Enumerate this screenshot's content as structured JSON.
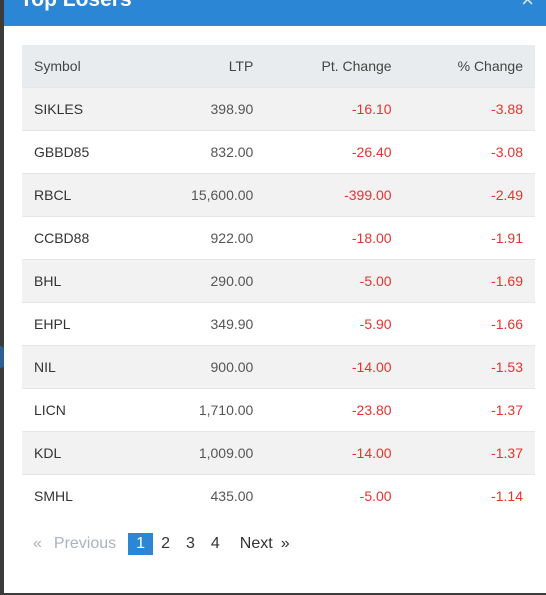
{
  "modal": {
    "title": "Top Losers",
    "close_glyph": "×"
  },
  "table": {
    "headers": [
      "Symbol",
      "LTP",
      "Pt. Change",
      "% Change"
    ],
    "rows": [
      {
        "symbol": "SIKLES",
        "ltp": "398.90",
        "pt_change": "-16.10",
        "pct_change": "-3.88"
      },
      {
        "symbol": "GBBD85",
        "ltp": "832.00",
        "pt_change": "-26.40",
        "pct_change": "-3.08"
      },
      {
        "symbol": "RBCL",
        "ltp": "15,600.00",
        "pt_change": "-399.00",
        "pct_change": "-2.49"
      },
      {
        "symbol": "CCBD88",
        "ltp": "922.00",
        "pt_change": "-18.00",
        "pct_change": "-1.91"
      },
      {
        "symbol": "BHL",
        "ltp": "290.00",
        "pt_change": "-5.00",
        "pct_change": "-1.69"
      },
      {
        "symbol": "EHPL",
        "ltp": "349.90",
        "pt_change": "-5.90",
        "pct_change": "-1.66"
      },
      {
        "symbol": "NIL",
        "ltp": "900.00",
        "pt_change": "-14.00",
        "pct_change": "-1.53"
      },
      {
        "symbol": "LICN",
        "ltp": "1,710.00",
        "pt_change": "-23.80",
        "pct_change": "-1.37"
      },
      {
        "symbol": "KDL",
        "ltp": "1,009.00",
        "pt_change": "-14.00",
        "pct_change": "-1.37"
      },
      {
        "symbol": "SMHL",
        "ltp": "435.00",
        "pt_change": "-5.00",
        "pct_change": "-1.14"
      }
    ]
  },
  "pagination": {
    "prev_arrow": "«",
    "prev_label": "Previous",
    "pages": [
      "1",
      "2",
      "3",
      "4"
    ],
    "active_page": "1",
    "next_label": "Next",
    "next_arrow": "»"
  },
  "colors": {
    "header_blue": "#2b86d6",
    "negative": "#e3342f",
    "active_page": "#2b86d6"
  }
}
